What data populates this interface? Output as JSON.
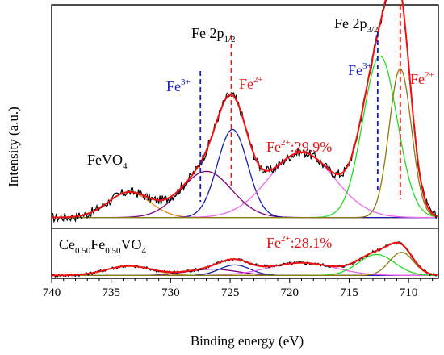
{
  "chart_data": {
    "type": "line",
    "xlabel": "Binding energy (eV)",
    "ylabel": "Intensity (a.u.)",
    "xlim": [
      740,
      707.5
    ],
    "x_reversed": true,
    "x_ticks": [
      740,
      735,
      730,
      725,
      720,
      715,
      710
    ],
    "y_ticks_shown": false,
    "grid": false,
    "colors": {
      "raw": "#000000",
      "envelope": "#ee1111",
      "background": "#ff8c00",
      "satellite": "#e8881c",
      "fe3_2p12": "#800080",
      "fe2_2p12": "#1a1aa6",
      "sat_mid": "#ee66ee",
      "fe3_2p32": "#22dd22",
      "fe2_2p32": "#8c7a10",
      "fe3_line": "#1a1acc",
      "fe2_line": "#ee1111"
    },
    "annotations": {
      "fe2p12": {
        "main": "Fe 2p",
        "sub": "1/2"
      },
      "fe2p32": {
        "main": "Fe 2p",
        "sub": "3/2"
      },
      "fe3_left": {
        "main": "Fe",
        "sup": "3+"
      },
      "fe2_left": {
        "main": "Fe",
        "sup": "2+"
      },
      "fe3_right": {
        "main": "Fe",
        "sup": "3+"
      },
      "fe2_right": {
        "main": "Fe",
        "sup": "2+"
      }
    },
    "reference_lines": [
      {
        "x": 727.5,
        "label": "Fe3+ (2p1/2)",
        "color": "#1a1acc"
      },
      {
        "x": 724.9,
        "label": "Fe2+ (2p1/2)",
        "color": "#ee1111"
      },
      {
        "x": 712.6,
        "label": "Fe3+ (2p3/2)",
        "color": "#1a1acc"
      },
      {
        "x": 710.7,
        "label": "Fe2+ (2p3/2)",
        "color": "#ee1111"
      }
    ],
    "panels": [
      {
        "sample": {
          "parts": [
            {
              "t": "FeVO",
              "s": ""
            },
            {
              "t": "4",
              "s": "sub"
            }
          ]
        },
        "fe2_fraction": {
          "main": "Fe",
          "sup": "2+",
          "rest": ":29.9%"
        },
        "baseline": 0.04,
        "background": {
          "left": 0.04,
          "right": 0.04
        },
        "peaks": [
          {
            "name": "satellite",
            "center": 733.5,
            "fwhm": 4.2,
            "height": 0.12
          },
          {
            "name": "Fe3+ 2p1/2",
            "center": 727.0,
            "fwhm": 5.0,
            "height": 0.22
          },
          {
            "name": "Fe2+ 2p1/2",
            "center": 724.8,
            "fwhm": 3.0,
            "height": 0.42
          },
          {
            "name": "satellite",
            "center": 719.0,
            "fwhm": 6.5,
            "height": 0.31
          },
          {
            "name": "Fe3+ 2p3/2",
            "center": 712.4,
            "fwhm": 3.4,
            "height": 0.77
          },
          {
            "name": "Fe2+ 2p3/2",
            "center": 710.7,
            "fwhm": 2.2,
            "height": 0.71
          }
        ]
      },
      {
        "sample": {
          "parts": [
            {
              "t": "Ce",
              "s": ""
            },
            {
              "t": "0.50",
              "s": "sub"
            },
            {
              "t": "Fe",
              "s": ""
            },
            {
              "t": "0.50",
              "s": "sub"
            },
            {
              "t": "VO",
              "s": ""
            },
            {
              "t": "4",
              "s": "sub"
            }
          ]
        },
        "fe2_fraction": {
          "main": "Fe",
          "sup": "2+",
          "rest": ":28.1%"
        },
        "baseline": 0.02,
        "background": {
          "left": 0.02,
          "right": 0.02
        },
        "peaks": [
          {
            "name": "satellite",
            "center": 733.5,
            "fwhm": 4.5,
            "height": 0.09
          },
          {
            "name": "Fe3+ 2p1/2",
            "center": 726.5,
            "fwhm": 5.0,
            "height": 0.06
          },
          {
            "name": "Fe2+ 2p1/2",
            "center": 724.6,
            "fwhm": 3.0,
            "height": 0.1
          },
          {
            "name": "satellite",
            "center": 719.0,
            "fwhm": 6.5,
            "height": 0.12
          },
          {
            "name": "Fe3+ 2p3/2",
            "center": 712.7,
            "fwhm": 3.6,
            "height": 0.2
          },
          {
            "name": "Fe2+ 2p3/2",
            "center": 710.6,
            "fwhm": 2.4,
            "height": 0.22
          }
        ]
      }
    ]
  }
}
